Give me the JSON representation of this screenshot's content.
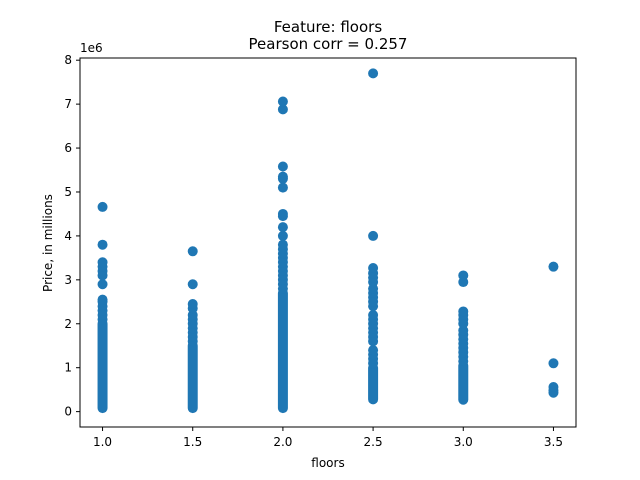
{
  "chart_data": {
    "type": "scatter",
    "title_line1": "Feature: floors",
    "title_line2": "Pearson corr = 0.257",
    "xlabel": "floors",
    "ylabel": "Price, in millions",
    "y_offset_label": "1e6",
    "xlim": [
      0.875,
      3.625
    ],
    "ylim": [
      -350000,
      8050000
    ],
    "x_ticks": [
      1.0,
      1.5,
      2.0,
      2.5,
      3.0,
      3.5
    ],
    "x_tick_labels": [
      "1.0",
      "1.5",
      "2.0",
      "2.5",
      "3.0",
      "3.5"
    ],
    "y_ticks": [
      0,
      1000000,
      2000000,
      3000000,
      4000000,
      5000000,
      6000000,
      7000000,
      8000000
    ],
    "y_tick_labels": [
      "0",
      "1",
      "2",
      "3",
      "4",
      "5",
      "6",
      "7",
      "8"
    ],
    "grid": false,
    "marker_color": "#1f77b4",
    "series": [
      {
        "x": 1.0,
        "dense_range": [
          80000,
          2000000
        ],
        "values": [
          2100000,
          2200000,
          2300000,
          2400000,
          2500000,
          2550000,
          2900000,
          3100000,
          3200000,
          3300000,
          3400000,
          3800000,
          4660000
        ]
      },
      {
        "x": 1.5,
        "dense_range": [
          80000,
          1500000
        ],
        "values": [
          1600000,
          1700000,
          1800000,
          1900000,
          2000000,
          2100000,
          2200000,
          2350000,
          2450000,
          2900000,
          3650000
        ]
      },
      {
        "x": 2.0,
        "dense_range": [
          80000,
          2700000
        ],
        "values": [
          2800000,
          2900000,
          3000000,
          3100000,
          3200000,
          3300000,
          3400000,
          3500000,
          3600000,
          3700000,
          3800000,
          4000000,
          4200000,
          4450000,
          4500000,
          5100000,
          5300000,
          5350000,
          5580000,
          6880000,
          7060000
        ]
      },
      {
        "x": 2.5,
        "dense_range": [
          280000,
          1000000
        ],
        "values": [
          1100000,
          1200000,
          1300000,
          1400000,
          1600000,
          1700000,
          1800000,
          1900000,
          2000000,
          2100000,
          2200000,
          2400000,
          2500000,
          2600000,
          2700000,
          2800000,
          2950000,
          3050000,
          3150000,
          3270000,
          4000000,
          7700000
        ]
      },
      {
        "x": 3.0,
        "dense_range": [
          270000,
          1050000
        ],
        "values": [
          1150000,
          1250000,
          1350000,
          1450000,
          1550000,
          1650000,
          1750000,
          1850000,
          2000000,
          2100000,
          2200000,
          2280000,
          2950000,
          3100000
        ]
      },
      {
        "x": 3.5,
        "dense_range": null,
        "values": [
          430000,
          490000,
          560000,
          1100000,
          3300000
        ]
      }
    ]
  }
}
